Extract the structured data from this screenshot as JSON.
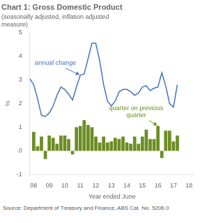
{
  "chart_data": {
    "type": "bar",
    "title": "Chart 1: Gross Domestic Product",
    "subtitle": "(seasonally adjusted, inflation adjusted\nmeasure)",
    "xlabel": "Year ended June",
    "ylabel": "%",
    "source": "Source: Department of Treasury and Finance, ABS Cat. No. 5206.0",
    "xlim": [
      7.75,
      18.35
    ],
    "ylim": [
      -1,
      5
    ],
    "xticks": [
      {
        "value": 8,
        "label": "08"
      },
      {
        "value": 9,
        "label": "09"
      },
      10,
      11,
      12,
      13,
      14,
      15,
      16,
      17,
      18
    ],
    "yticks": [
      -1,
      0,
      1,
      2,
      3,
      4,
      5
    ],
    "grid": false,
    "series": [
      {
        "type": "bar",
        "color": "#6B8E23",
        "annotation": "quarter on previous\nquarter",
        "x": [
          8.0,
          8.25,
          8.5,
          8.75,
          9.0,
          9.25,
          9.5,
          9.75,
          10.0,
          10.25,
          10.5,
          10.75,
          11.0,
          11.25,
          11.5,
          11.75,
          12.0,
          12.25,
          12.5,
          12.75,
          13.0,
          13.25,
          13.5,
          13.75,
          14.0,
          14.25,
          14.5,
          14.75,
          15.0,
          15.25,
          15.5,
          15.75,
          16.0,
          16.25,
          16.5,
          16.75,
          17.0,
          17.25
        ],
        "values": [
          0.8,
          0.2,
          0.6,
          -0.35,
          0.65,
          0.55,
          0.3,
          0.65,
          0.65,
          0.5,
          -0.15,
          1.0,
          1.05,
          1.3,
          1.1,
          1.0,
          0.6,
          0.35,
          0.6,
          0.35,
          0.4,
          0.55,
          0.5,
          0.6,
          0.35,
          0.3,
          0.6,
          0.3,
          0.6,
          0.9,
          0.5,
          0.5,
          1.05,
          -0.3,
          0.85,
          0.85,
          0.4,
          0.65
        ]
      },
      {
        "type": "line",
        "color": "#4472C4",
        "annotation": "annual change",
        "x": [
          7.75,
          8.0,
          8.25,
          8.5,
          8.75,
          9.0,
          9.25,
          9.5,
          9.75,
          10.0,
          10.25,
          10.5,
          10.75,
          11.0,
          11.25,
          11.5,
          11.75,
          12.0,
          12.25,
          12.5,
          12.75,
          13.0,
          13.25,
          13.5,
          13.75,
          14.0,
          14.25,
          14.5,
          14.75,
          15.0,
          15.25,
          15.5,
          15.75,
          16.0,
          16.25,
          16.5,
          16.75,
          17.0,
          17.25
        ],
        "values": [
          3.05,
          2.8,
          2.2,
          1.5,
          1.45,
          1.6,
          1.9,
          2.35,
          2.7,
          2.6,
          2.4,
          2.15,
          2.7,
          3.2,
          3.25,
          3.9,
          4.55,
          4.55,
          3.8,
          2.8,
          2.1,
          1.9,
          2.1,
          2.5,
          2.6,
          2.6,
          2.5,
          2.35,
          2.45,
          2.7,
          2.75,
          2.55,
          2.65,
          2.7,
          3.3,
          2.75,
          2.0,
          1.85,
          2.8
        ]
      }
    ]
  }
}
